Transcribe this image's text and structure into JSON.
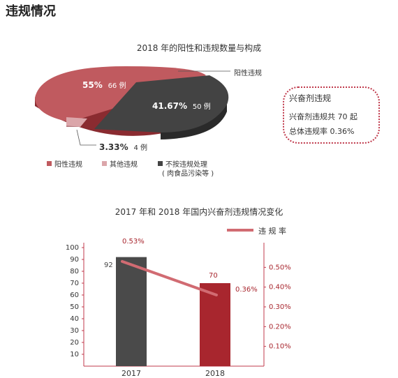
{
  "section_title": "违规情况",
  "colors": {
    "positive": "#c05a5f",
    "other": "#dba6aa",
    "untreated": "#444444",
    "bar_2017": "#4a4a4a",
    "bar_2018": "#a8262e",
    "rate_line": "#d16b72",
    "axis": "#c0394b"
  },
  "pie_labels": {
    "positive_callout": "阳性违规",
    "positive_pct": "55%",
    "positive_count": "66 例",
    "untreated_pct": "41.67%",
    "untreated_count": "50 例",
    "other_pct": "3.33%",
    "other_count": "4 例"
  },
  "pie_legend": {
    "positive": "阳性违规",
    "other": "其他违规",
    "untreated": "不按违规处理",
    "untreated_note": "( 肉食品污染等 )"
  },
  "note_box": {
    "title": "兴奋剂违规",
    "line1": "兴奋剂违规共 70 起",
    "line2": "总体违规率 0.36%"
  },
  "bar_labels": {
    "legend": "违 规 率",
    "val_2017": "92",
    "val_2018": "70",
    "rate_2017": "0.53%",
    "rate_2018": "0.36%"
  },
  "chart_data": [
    {
      "type": "pie",
      "title": "2018 年的阳性和违规数量与构成",
      "slices": [
        {
          "name": "阳性违规",
          "value": 66,
          "percent": 55
        },
        {
          "name": "其他违规",
          "value": 4,
          "percent": 3.33
        },
        {
          "name": "不按违规处理",
          "value": 50,
          "percent": 41.67
        }
      ]
    },
    {
      "type": "bar",
      "title": "2017 年和 2018 年国内兴奋剂违规情况变化",
      "categories": [
        "2017",
        "2018"
      ],
      "series": [
        {
          "values": [
            92,
            70
          ]
        },
        {
          "name": "违 规 率",
          "type": "line",
          "values": [
            0.53,
            0.36
          ]
        }
      ],
      "ylim": [
        0,
        100
      ],
      "yticks": [
        "10",
        "20",
        "30",
        "40",
        "50",
        "60",
        "70",
        "80",
        "90",
        "100"
      ],
      "y2lim": [
        0,
        0.6
      ],
      "y2ticks": [
        "0.10%",
        "0.20%",
        "0.30%",
        "0.40%",
        "0.50%"
      ]
    }
  ]
}
